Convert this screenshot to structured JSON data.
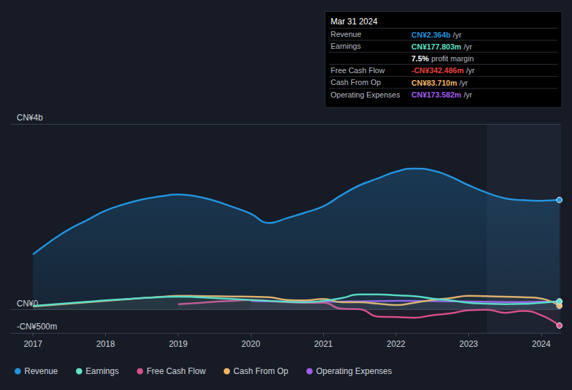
{
  "chart_data": {
    "type": "line",
    "x": [
      2017,
      2017.25,
      2017.5,
      2017.75,
      2018,
      2018.25,
      2018.5,
      2018.75,
      2019,
      2019.25,
      2019.5,
      2019.75,
      2020,
      2020.25,
      2020.5,
      2020.75,
      2021,
      2021.25,
      2021.5,
      2021.75,
      2022,
      2022.25,
      2022.5,
      2022.75,
      2023,
      2023.25,
      2023.5,
      2023.75,
      2024,
      2024.25
    ],
    "xlim": [
      2016.7,
      2024.27
    ],
    "xticks": [
      2017,
      2018,
      2019,
      2020,
      2021,
      2022,
      2023,
      2024
    ],
    "ylim": [
      -500,
      4000
    ],
    "yticks": [
      {
        "value": -500,
        "label": "-CN¥500m"
      },
      {
        "value": 0,
        "label": "CN¥0"
      },
      {
        "value": 4000,
        "label": "CN¥4b"
      }
    ],
    "grid": true,
    "legend": "bottom-left",
    "series": [
      {
        "name": "Revenue",
        "color": "#2394df",
        "values": [
          1190,
          1480,
          1733,
          1933,
          2133,
          2267,
          2373,
          2440,
          2480,
          2440,
          2347,
          2213,
          2067,
          1867,
          1973,
          2093,
          2227,
          2467,
          2680,
          2827,
          2973,
          3040,
          3000,
          2867,
          2680,
          2520,
          2400,
          2360,
          2347,
          2364
        ]
      },
      {
        "name": "Earnings",
        "color": "#5fe3c5",
        "values": [
          80,
          110,
          140,
          170,
          200,
          225,
          250,
          270,
          280,
          270,
          250,
          230,
          210,
          190,
          170,
          160,
          190,
          250,
          330,
          330,
          310,
          290,
          240,
          200,
          150,
          130,
          120,
          125,
          150,
          177.803
        ]
      },
      {
        "name": "Free Cash Flow",
        "color": "#d9508a",
        "values": [
          null,
          null,
          null,
          null,
          null,
          null,
          null,
          null,
          120,
          140,
          170,
          190,
          210,
          190,
          160,
          150,
          150,
          20,
          10,
          -150,
          -160,
          -173,
          -120,
          -80,
          -13,
          0,
          -67,
          -27,
          -120,
          -342.486
        ]
      },
      {
        "name": "Cash From Op",
        "color": "#f2b564",
        "values": [
          70,
          100,
          130,
          160,
          190,
          220,
          250,
          275,
          300,
          295,
          290,
          285,
          280,
          270,
          210,
          200,
          230,
          160,
          160,
          130,
          100,
          150,
          210,
          250,
          300,
          290,
          280,
          270,
          240,
          83.71
        ]
      },
      {
        "name": "Operating Expenses",
        "color": "#a45cf0",
        "values": [
          null,
          null,
          null,
          null,
          null,
          null,
          null,
          null,
          null,
          null,
          null,
          null,
          190,
          180,
          175,
          170,
          170,
          175,
          180,
          185,
          190,
          190,
          185,
          180,
          175,
          170,
          165,
          165,
          170,
          173.582
        ]
      }
    ],
    "annotation": {
      "title": "Mar 31 2024",
      "rows": [
        {
          "label": "Revenue",
          "value": "CN¥2.364b",
          "unit": "/yr",
          "color": "#2394df"
        },
        {
          "label": "Earnings",
          "value": "CN¥177.803m",
          "unit": "/yr",
          "color": "#5fe3c5"
        },
        {
          "value": "7.5%",
          "unit": "profit margin",
          "color": "#ffffff"
        },
        {
          "label": "Free Cash Flow",
          "value": "-CN¥342.486m",
          "unit": "/yr",
          "color": "#e8403f"
        },
        {
          "label": "Cash From Op",
          "value": "CN¥83.710m",
          "unit": "/yr",
          "color": "#f2b564"
        },
        {
          "label": "Operating Expenses",
          "value": "CN¥173.582m",
          "unit": "/yr",
          "color": "#a45cf0"
        }
      ]
    }
  }
}
